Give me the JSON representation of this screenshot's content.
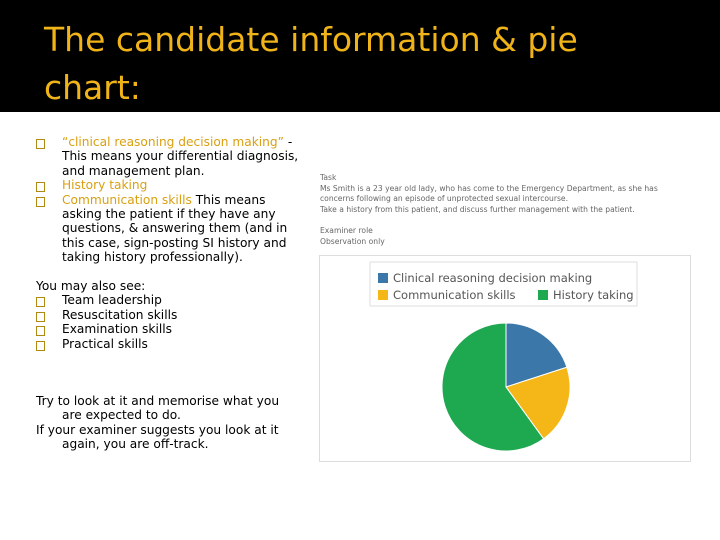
{
  "header": {
    "title": "The candidate information & pie chart:"
  },
  "left": {
    "items": [
      {
        "highlight": "“clinical reasoning decision making”",
        "text": " - This means your differential diagnosis, and management plan."
      },
      {
        "highlight": "History taking"
      },
      {
        "highlight": "Communication skills",
        "text": " This means asking the patient if they have any questions, & answering them (and in this case, sign-posting SI history and taking history professionally)."
      }
    ],
    "also_heading": "You may also see:",
    "also_items": [
      "Team leadership",
      "Resuscitation skills",
      "Examination skills",
      "Practical skills"
    ],
    "notes": [
      "Try to look at it and memorise what you are expected to do.",
      "If your examiner suggests you look at it again, you are off-track."
    ]
  },
  "task": {
    "label": "Task",
    "lines": [
      "Ms Smith is a 23 year old lady, who has come to the Emergency Department, as she has concerns following an episode of unprotected sexual intercourse.",
      "Take a history from this patient, and discuss further management with the patient."
    ],
    "role_label": "Examiner role",
    "role": "Observation only"
  },
  "chart_data": {
    "type": "pie",
    "categories": [
      "Clinical reasoning decision making",
      "Communication skills",
      "History taking"
    ],
    "values": [
      20,
      20,
      60
    ],
    "colors": [
      "#3b77a8",
      "#f5b717",
      "#1ea84f"
    ]
  }
}
